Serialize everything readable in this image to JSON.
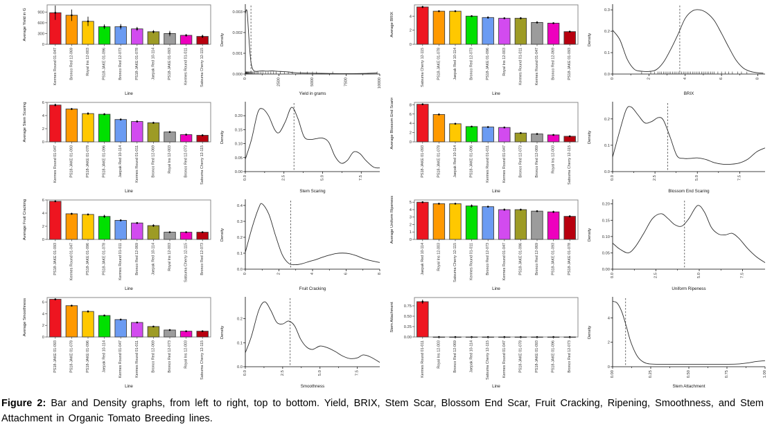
{
  "caption": {
    "label": "Figure 2:",
    "text": " Bar and Density graphs, from left to right, top to bottom. Yield, BRIX, Stem Scar, Blossom End Scar, Fruit Cracking, Ripening, Smoothness, and Stem Attachment in Organic Tomato Breeding lines."
  },
  "style": {
    "bar_palette": [
      "#ee1520",
      "#ff9900",
      "#ffc800",
      "#00e000",
      "#6b9bf2",
      "#d24bef",
      "#9d9b25",
      "#9c9c9c",
      "#ee00be",
      "#b8000f"
    ],
    "bar_stroke": "#3d3d3d",
    "panel_border": "#8a8a8a",
    "line_color": "#2b2b2b",
    "vline_color": "#555555",
    "axis_color": "#333333"
  },
  "chart_data": [
    {
      "type": "bar",
      "ylabel": "Average Yield in G",
      "xlabel": "Line",
      "categories": [
        "Kermes Round 01-047",
        "Bronco Red 12-069",
        "Royal Ins 12-003",
        "PS18-JAKE 01-096",
        "Bronco Red 12-073",
        "PS18-JAKE 01-078",
        "Jaepak Red 10-114",
        "PS18-JAKE 01-093",
        "Kermes Round 01-011",
        "Satsuma Cherry 12-115"
      ],
      "values": [
        880,
        810,
        640,
        490,
        490,
        430,
        350,
        300,
        250,
        220
      ],
      "errors": [
        200,
        160,
        130,
        65,
        75,
        55,
        45,
        75,
        35,
        45
      ],
      "ylim": [
        0,
        1100
      ],
      "yticks": [
        "0",
        "300",
        "600",
        "900"
      ]
    },
    {
      "type": "density",
      "xlabel": "Yield in grams",
      "ylabel": "Density",
      "x": [
        0,
        80,
        150,
        250,
        350,
        450,
        600,
        800,
        1000,
        1300,
        1600,
        2000,
        2400,
        2800,
        3200,
        3600,
        4200,
        5000,
        6000,
        7000,
        8000,
        9000,
        9800
      ],
      "y": [
        0.0029,
        0.0031,
        0.0029,
        0.0019,
        0.001,
        0.00045,
        0.00018,
        0.00013,
        0.00014,
        0.00015,
        0.00014,
        0.00015,
        0.00013,
        0.00012,
        0.0001,
        7e-05,
        5e-05,
        4e-05,
        3e-05,
        2e-05,
        2e-05,
        3e-05,
        5e-05
      ],
      "vline": 420,
      "xlim": [
        0,
        10000
      ],
      "ylim": [
        0,
        0.0033
      ],
      "xticks": [
        "0",
        "2500",
        "5000",
        "7500",
        "10000"
      ],
      "yticks": [
        "0.000",
        "0.001",
        "0.002",
        "0.003"
      ],
      "rug": [
        20,
        40,
        60,
        80,
        100,
        130,
        160,
        200,
        240,
        280,
        330,
        380,
        430,
        500,
        560,
        620,
        700,
        800,
        900,
        1000,
        1150,
        1300,
        1500,
        1700,
        1900,
        2100,
        2300,
        2600,
        2900,
        3200,
        3500,
        4100,
        4600,
        5000,
        5300,
        6500,
        9800
      ]
    },
    {
      "type": "bar",
      "ylabel": "Average BRIX",
      "xlabel": "Line",
      "categories": [
        "Satsuma Cherry 12-115",
        "PS18-JAKE 01-078",
        "Jaepak Red 10-114",
        "Bronco Red 12-073",
        "PS18-JAKE 01-096",
        "Royal Ins 12-003",
        "Kermes Round 01-011",
        "Kermes Round 01-047",
        "Bronco Red 12-069",
        "PS18-JAKE 01-093"
      ],
      "values": [
        5.3,
        4.7,
        4.7,
        4.0,
        3.8,
        3.7,
        3.7,
        3.1,
        3.0,
        1.8
      ],
      "errors": [
        0.15,
        0.1,
        0.1,
        0.1,
        0.15,
        0.1,
        0.15,
        0.15,
        0.1,
        0.1
      ],
      "ylim": [
        0,
        5.6
      ],
      "yticks": [
        "0",
        "2",
        "4"
      ]
    },
    {
      "type": "density",
      "xlabel": "BRIX",
      "ylabel": "Density",
      "x": [
        0,
        0.4,
        0.8,
        1.2,
        1.6,
        2.0,
        2.4,
        2.8,
        3.2,
        3.6,
        4.0,
        4.4,
        4.8,
        5.2,
        5.6,
        6.0,
        6.4,
        6.8,
        7.2,
        7.6,
        8.0,
        8.3
      ],
      "y": [
        0.205,
        0.16,
        0.07,
        0.022,
        0.013,
        0.012,
        0.02,
        0.055,
        0.115,
        0.185,
        0.26,
        0.295,
        0.3,
        0.285,
        0.25,
        0.19,
        0.125,
        0.065,
        0.028,
        0.012,
        0.006,
        0.004
      ],
      "vline": 3.7,
      "xlim": [
        0,
        8.4
      ],
      "ylim": [
        0,
        0.32
      ],
      "xticks": [
        "0",
        "2",
        "4",
        "6",
        "8"
      ],
      "yticks": [
        "0.0",
        "0.1",
        "0.2",
        "0.3"
      ],
      "rug": [
        1.6,
        2.1,
        2.3,
        2.5,
        2.6,
        2.7,
        2.8,
        2.9,
        3.0,
        3.1,
        3.2,
        3.3,
        3.4,
        3.5,
        3.6,
        3.7,
        3.8,
        3.9,
        4.0,
        4.1,
        4.2,
        4.3,
        4.4,
        4.5,
        4.6,
        4.7,
        4.8,
        4.9,
        5.0,
        5.1,
        5.2,
        5.3,
        5.4,
        5.5,
        5.6,
        5.8,
        6.0,
        6.2,
        6.4,
        6.6,
        6.9,
        7.1,
        7.4
      ]
    },
    {
      "type": "bar",
      "ylabel": "Average Stem Scaring",
      "xlabel": "Line",
      "categories": [
        "Kermes Round 01-047",
        "PS18-JAKE 01-093",
        "PS18-JAKE 01-078",
        "PS18-JAKE 01-096",
        "Jaepak Red 10-114",
        "Kermes Round 01-011",
        "Bronco Red 12-069",
        "Royal Ins 12-003",
        "Bronco Red 12-073",
        "Satsuma Cherry 12-115"
      ],
      "values": [
        5.6,
        5.0,
        4.3,
        4.2,
        3.4,
        3.1,
        2.9,
        1.5,
        1.1,
        1.0
      ],
      "errors": [
        0.2,
        0.15,
        0.2,
        0.15,
        0.15,
        0.15,
        0.15,
        0.15,
        0.15,
        0.15
      ],
      "ylim": [
        0,
        6.0
      ],
      "yticks": [
        "0",
        "2",
        "4",
        "6"
      ]
    },
    {
      "type": "density",
      "xlabel": "Stem Scaring",
      "ylabel": "Density",
      "x": [
        0,
        0.4,
        0.8,
        1.1,
        1.5,
        1.9,
        2.2,
        2.6,
        3.0,
        3.4,
        3.8,
        4.2,
        4.6,
        5.0,
        5.4,
        5.8,
        6.2,
        6.6,
        7.0,
        7.4,
        7.8,
        8.3,
        8.7
      ],
      "y": [
        0.044,
        0.115,
        0.21,
        0.225,
        0.2,
        0.15,
        0.14,
        0.18,
        0.23,
        0.19,
        0.125,
        0.115,
        0.118,
        0.12,
        0.105,
        0.055,
        0.03,
        0.04,
        0.07,
        0.065,
        0.04,
        0.016,
        0.013
      ],
      "vline": 3.15,
      "xlim": [
        0,
        8.7
      ],
      "ylim": [
        0,
        0.245
      ],
      "xticks": [
        "0.0",
        "2.5",
        "5.0",
        "7.5"
      ],
      "yticks": [
        "0.00",
        "0.05",
        "0.10",
        "0.15",
        "0.20"
      ]
    },
    {
      "type": "bar",
      "ylabel": "Average Blossom End Scaring",
      "xlabel": "Line",
      "categories": [
        "PS18-JAKE 01-093",
        "PS18-JAKE 01-078",
        "Jaepak Red 10-114",
        "PS18-JAKE 01-096",
        "Kermes Round 01-011",
        "Kermes Round 01-047",
        "Bronco Red 12-073",
        "Bronco Red 12-069",
        "Royal Ins 12-003",
        "Satsuma Cherry 12-115"
      ],
      "values": [
        8.1,
        5.9,
        3.9,
        3.3,
        3.2,
        3.1,
        1.9,
        1.7,
        1.5,
        1.2
      ],
      "errors": [
        0.15,
        0.2,
        0.15,
        0.15,
        0.15,
        0.15,
        0.15,
        0.15,
        0.1,
        0.1
      ],
      "ylim": [
        0,
        8.5
      ],
      "yticks": [
        "0",
        "2",
        "4",
        "6",
        "8"
      ]
    },
    {
      "type": "density",
      "xlabel": "Blossom End Scaring",
      "ylabel": "Density",
      "x": [
        0,
        0.4,
        0.8,
        1.1,
        1.5,
        1.9,
        2.3,
        2.7,
        3.0,
        3.4,
        3.8,
        4.2,
        4.6,
        5.0,
        5.5,
        6.0,
        6.5,
        7.0,
        7.5,
        8.0,
        8.5,
        9.0
      ],
      "y": [
        0.055,
        0.15,
        0.235,
        0.245,
        0.215,
        0.185,
        0.19,
        0.205,
        0.195,
        0.13,
        0.06,
        0.05,
        0.05,
        0.052,
        0.046,
        0.034,
        0.028,
        0.028,
        0.033,
        0.048,
        0.075,
        0.09
      ],
      "vline": 3.25,
      "xlim": [
        0,
        9.0
      ],
      "ylim": [
        0,
        0.26
      ],
      "xticks": [
        "0.0",
        "2.5",
        "5.0",
        "7.5"
      ],
      "yticks": [
        "0.0",
        "0.1",
        "0.2"
      ]
    },
    {
      "type": "bar",
      "ylabel": "Average Fruit Cracking",
      "xlabel": "Line",
      "categories": [
        "PS18-JAKE 01-093",
        "Kermes Round 01-047",
        "PS18-JAKE 01-096",
        "PS18-JAKE 01-078",
        "Kermes Round 01-011",
        "Bronco Red 12-069",
        "Jaepak Red 10-114",
        "Royal Ins 12-003",
        "Satsuma Cherry 12-115",
        "Bronco Red 12-073"
      ],
      "values": [
        5.8,
        3.9,
        3.8,
        3.5,
        2.9,
        2.5,
        2.1,
        1.1,
        1.1,
        1.1
      ],
      "errors": [
        0.1,
        0.15,
        0.15,
        0.25,
        0.12,
        0.15,
        0.2,
        0.08,
        0.1,
        0.08
      ],
      "ylim": [
        0,
        6.0
      ],
      "yticks": [
        "0",
        "2",
        "4",
        "6"
      ]
    },
    {
      "type": "density",
      "xlabel": "Fruit Cracking",
      "ylabel": "Density",
      "x": [
        0,
        0.4,
        0.8,
        1.0,
        1.4,
        1.8,
        2.2,
        2.6,
        3.0,
        3.4,
        3.8,
        4.2,
        4.6,
        5.0,
        5.4,
        5.8,
        6.2,
        6.6,
        7.0,
        7.4,
        8.0
      ],
      "y": [
        0.105,
        0.26,
        0.385,
        0.41,
        0.345,
        0.21,
        0.09,
        0.035,
        0.028,
        0.035,
        0.048,
        0.06,
        0.075,
        0.088,
        0.098,
        0.101,
        0.097,
        0.085,
        0.068,
        0.055,
        0.042
      ],
      "vline": 2.7,
      "xlim": [
        0,
        8.0
      ],
      "ylim": [
        0,
        0.43
      ],
      "xticks": [
        "0",
        "2",
        "4",
        "6",
        "8"
      ],
      "yticks": [
        "0.0",
        "0.1",
        "0.2",
        "0.3",
        "0.4"
      ]
    },
    {
      "type": "bar",
      "ylabel": "Average Uniform Ripeness",
      "xlabel": "Line",
      "categories": [
        "Jaepak Red 10-114",
        "Royal Ins 12-003",
        "Satsuma Cherry 12-115",
        "Kermes Round 01-011",
        "Bronco Red 12-073",
        "Kermes Round 01-047",
        "PS18-JAKE 01-096",
        "Bronco Red 12-069",
        "PS18-JAKE 01-093",
        "PS18-JAKE 01-078"
      ],
      "values": [
        5.0,
        4.8,
        4.8,
        4.5,
        4.4,
        4.0,
        4.0,
        3.8,
        3.7,
        3.1
      ],
      "errors": [
        0.1,
        0.12,
        0.1,
        0.2,
        0.12,
        0.15,
        0.12,
        0.12,
        0.15,
        0.15
      ],
      "ylim": [
        0,
        5.3
      ],
      "yticks": [
        "0",
        "1",
        "2",
        "3",
        "4",
        "5"
      ]
    },
    {
      "type": "density",
      "xlabel": "Uniform Ripeness",
      "ylabel": "Density",
      "x": [
        0,
        0.4,
        0.9,
        1.3,
        1.8,
        2.3,
        2.8,
        3.2,
        3.6,
        4.0,
        4.4,
        4.9,
        5.3,
        5.7,
        6.1,
        6.5,
        6.9,
        7.3,
        7.8,
        8.3,
        8.8
      ],
      "y": [
        0.08,
        0.062,
        0.05,
        0.068,
        0.11,
        0.155,
        0.17,
        0.155,
        0.136,
        0.132,
        0.155,
        0.195,
        0.175,
        0.128,
        0.108,
        0.105,
        0.11,
        0.094,
        0.063,
        0.038,
        0.02
      ],
      "vline": 4.15,
      "xlim": [
        0,
        8.8
      ],
      "ylim": [
        0,
        0.21
      ],
      "xticks": [
        "0.0",
        "2.5",
        "5.0",
        "7.5"
      ],
      "yticks": [
        "0.00",
        "0.05",
        "0.10",
        "0.15",
        "0.20"
      ]
    },
    {
      "type": "bar",
      "ylabel": "Average Smoothness",
      "xlabel": "Line",
      "categories": [
        "PS18-JAKE 01-093",
        "PS18-JAKE 01-078",
        "PS18-JAKE 01-096",
        "Jaepak Red 10-114",
        "Kermes Round 01-047",
        "Kermes Round 01-011",
        "Bronco Red 12-069",
        "Bronco Red 12-073",
        "Royal Ins 12-003",
        "Satsuma Cherry 12-115"
      ],
      "values": [
        6.5,
        5.4,
        4.4,
        3.7,
        3.0,
        2.5,
        1.8,
        1.2,
        1.0,
        1.0
      ],
      "errors": [
        0.12,
        0.15,
        0.2,
        0.15,
        0.12,
        0.12,
        0.12,
        0.1,
        0.12,
        0.12
      ],
      "ylim": [
        0,
        6.8
      ],
      "yticks": [
        "0",
        "2",
        "4",
        "6"
      ]
    },
    {
      "type": "density",
      "xlabel": "Smoothness",
      "ylabel": "Density",
      "x": [
        0,
        0.4,
        0.9,
        1.3,
        1.7,
        2.1,
        2.5,
        2.9,
        3.3,
        3.7,
        4.1,
        4.5,
        5.0,
        5.5,
        6.0,
        6.5,
        7.0,
        7.5,
        7.9,
        8.4,
        9.0
      ],
      "y": [
        0.058,
        0.125,
        0.235,
        0.27,
        0.235,
        0.185,
        0.178,
        0.19,
        0.17,
        0.115,
        0.082,
        0.072,
        0.086,
        0.079,
        0.064,
        0.045,
        0.034,
        0.037,
        0.049,
        0.04,
        0.018
      ],
      "vline": 3.0,
      "xlim": [
        0,
        9.0
      ],
      "ylim": [
        0,
        0.285
      ],
      "xticks": [
        "0.0",
        "2.5",
        "5.0",
        "7.5"
      ],
      "yticks": [
        "0.0",
        "0.1",
        "0.2"
      ]
    },
    {
      "type": "bar",
      "ylabel": "Stem Attachment",
      "xlabel": "Line",
      "categories": [
        "Kermes Round 01-011",
        "Royal Ins 12-003",
        "Bronco Red 12-069",
        "Jaepak Red 10-114",
        "Satsuma Cherry 12-115",
        "Kermes Round 01-047",
        "PS18-JAKE 01-078",
        "PS18-JAKE 01-093",
        "PS18-JAKE 01-096",
        "Bronco Red 12-073"
      ],
      "values": [
        0.85,
        0,
        0,
        0,
        0,
        0,
        0,
        0,
        0,
        0
      ],
      "errors": [
        0.05,
        0.01,
        0.01,
        0.01,
        0.01,
        0.01,
        0.01,
        0.01,
        0.01,
        0.01
      ],
      "ylim": [
        0,
        0.95
      ],
      "yticks": [
        "0.00",
        "0.25",
        "0.50",
        "0.75"
      ]
    },
    {
      "type": "density",
      "xlabel": "Stem Attachment",
      "ylabel": "Density",
      "x": [
        0,
        0.03,
        0.06,
        0.09,
        0.12,
        0.16,
        0.2,
        0.25,
        0.35,
        0.45,
        0.55,
        0.65,
        0.75,
        0.82,
        0.88,
        0.94,
        1.0
      ],
      "y": [
        5.35,
        5.2,
        4.5,
        3.3,
        2.0,
        0.9,
        0.4,
        0.22,
        0.2,
        0.2,
        0.2,
        0.2,
        0.2,
        0.22,
        0.3,
        0.42,
        0.5
      ],
      "vline": 0.085,
      "xlim": [
        0,
        1.0
      ],
      "ylim": [
        0,
        5.6
      ],
      "xticks": [
        "0.00",
        "0.25",
        "0.50",
        "0.75",
        "1.00"
      ],
      "yticks": [
        "0",
        "2",
        "4"
      ]
    }
  ]
}
